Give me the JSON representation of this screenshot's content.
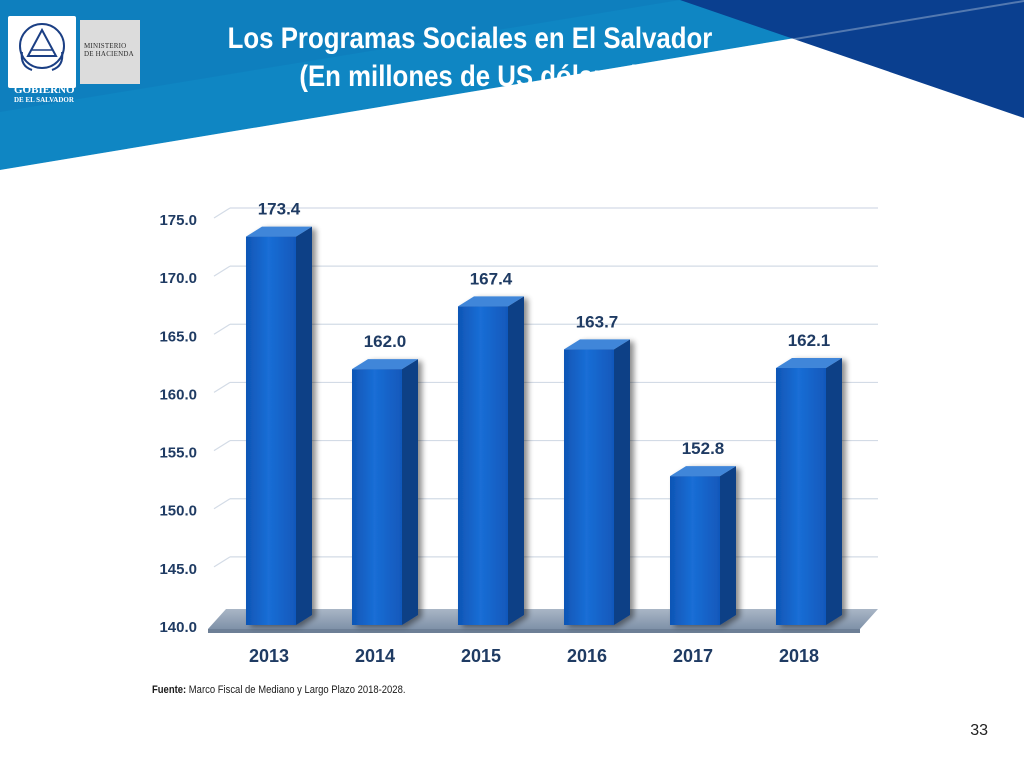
{
  "header": {
    "title_line1": "Los Programas Sociales en El Salvador",
    "title_line2": "(En millones de US dólares)",
    "ministry_line1": "MINISTERIO",
    "ministry_line2": "DE HACIENDA",
    "government_line1": "GOBIERNO",
    "government_line2": "DE EL SALVADOR"
  },
  "colors": {
    "banner_light": "#0f86c3",
    "banner_dark": "#0a3f8f",
    "bar_front": "#1563c7",
    "bar_side": "#0b3f86",
    "bar_top": "#3f86d9",
    "floor": "#8a9bb0"
  },
  "chart_data": {
    "type": "bar",
    "title": "Los Programas Sociales en El Salvador (En millones de US dólares)",
    "categories": [
      "2013",
      "2014",
      "2015",
      "2016",
      "2017",
      "2018"
    ],
    "values": [
      173.4,
      162.0,
      167.4,
      163.7,
      152.8,
      162.1
    ],
    "value_labels": [
      "173.4",
      "162.0",
      "167.4",
      "163.7",
      "152.8",
      "162.1"
    ],
    "y_ticks": [
      "140.0",
      "145.0",
      "150.0",
      "155.0",
      "160.0",
      "165.0",
      "170.0",
      "175.0"
    ],
    "ylim": [
      140,
      175
    ],
    "xlabel": "",
    "ylabel": "",
    "grid": true,
    "legend": "none"
  },
  "footer": {
    "source_label": "Fuente:",
    "source_text": "Marco Fiscal de Mediano y Largo Plazo 2018-2028.",
    "page_number": "33"
  }
}
